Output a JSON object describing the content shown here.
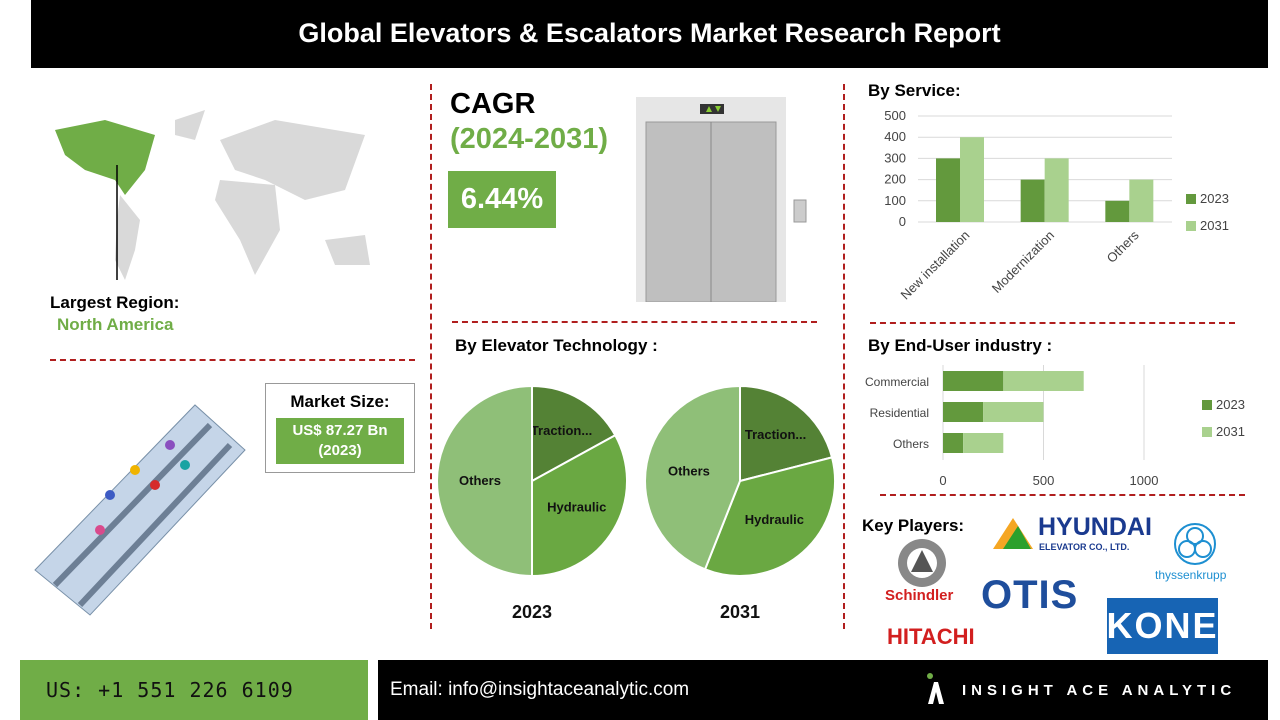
{
  "header": {
    "title": "Global Elevators & Escalators Market Research Report"
  },
  "region": {
    "label": "Largest Region:",
    "value": "North America"
  },
  "market": {
    "label": "Market Size:",
    "value": "US$ 87.27 Bn",
    "year": "(2023)"
  },
  "cagr": {
    "label": "CAGR",
    "period": "(2024-2031)",
    "value": "6.44%"
  },
  "sections": {
    "service": "By Service:",
    "technology": "By Elevator Technology :",
    "enduser": "By End-User industry :",
    "players": "Key Players:"
  },
  "colors": {
    "dark_green": "#63993d",
    "light_green": "#a9d18e",
    "accent": "#70ad47",
    "divider": "#b01e1e"
  },
  "chart_data": [
    {
      "type": "bar",
      "title": "By Service:",
      "categories": [
        "New installation",
        "Modernization",
        "Others"
      ],
      "series": [
        {
          "name": "2023",
          "values": [
            300,
            200,
            100
          ]
        },
        {
          "name": "2031",
          "values": [
            400,
            300,
            200
          ]
        }
      ],
      "ylim": [
        0,
        500
      ],
      "yticks": [
        0,
        100,
        200,
        300,
        400,
        500
      ],
      "grid": true,
      "legend": "right"
    },
    {
      "type": "bar",
      "orientation": "horizontal",
      "stacked": true,
      "title": "By End-User industry :",
      "categories": [
        "Commercial",
        "Residential",
        "Others"
      ],
      "series": [
        {
          "name": "2023",
          "values": [
            300,
            200,
            100
          ]
        },
        {
          "name": "2031",
          "values": [
            400,
            300,
            200
          ]
        }
      ],
      "xlim": [
        0,
        1000
      ],
      "xticks": [
        0,
        500,
        1000
      ],
      "grid": true,
      "legend": "right"
    },
    {
      "type": "pie",
      "title": "2023",
      "labels": [
        "Traction...",
        "Hydraulic",
        "Others"
      ],
      "values": [
        17,
        33,
        50
      ],
      "colors": [
        "#548235",
        "#6aa842",
        "#8fbf78"
      ]
    },
    {
      "type": "pie",
      "title": "2031",
      "labels": [
        "Traction...",
        "Hydraulic",
        "Others"
      ],
      "values": [
        21,
        35,
        44
      ],
      "colors": [
        "#548235",
        "#6aa842",
        "#8fbf78"
      ]
    }
  ],
  "players": {
    "hyundai": "HYUNDAI",
    "hyundai_sub": "ELEVATOR CO., LTD.",
    "schindler": "Schindler",
    "otis": "OTIS",
    "thyssen": "thyssenkrupp",
    "hitachi": "HITACHI",
    "kone": "KONE"
  },
  "footer": {
    "phone": "US: +1 551 226 6109",
    "email": "Email: info@insightaceanalytic.com",
    "brand": "INSIGHT ACE ANALYTIC"
  }
}
